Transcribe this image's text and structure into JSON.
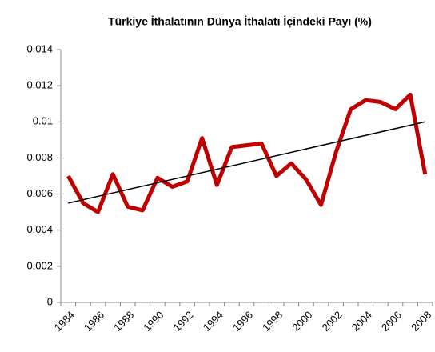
{
  "chart_data": {
    "type": "line",
    "title": "Türkiye İthalatının Dünya İthalatı  İçindeki Payı (%)",
    "categories": [
      "1984",
      null,
      "1986",
      null,
      "1988",
      null,
      "1990",
      null,
      "1992",
      null,
      "1994",
      null,
      "1996",
      null,
      "1998",
      null,
      "2000",
      null,
      "2002",
      null,
      "2004",
      null,
      "2006",
      null,
      "2008"
    ],
    "series": [
      {
        "color": "#c00000",
        "values": [
          0.007,
          0.0055,
          0.005,
          0.0071,
          0.0053,
          0.0051,
          0.0069,
          0.0064,
          0.0067,
          0.0091,
          0.0065,
          0.0086,
          0.0087,
          0.0088,
          0.007,
          0.0077,
          0.0068,
          0.0054,
          0.0083,
          0.0107,
          0.0112,
          0.0111,
          0.0107,
          0.0115,
          0.0071
        ]
      }
    ],
    "trendline": {
      "color": "#000000",
      "values": [
        0.0055,
        0.01
      ]
    },
    "ylim": [
      0,
      0.014
    ],
    "yticks": [
      0,
      0.002,
      0.004,
      0.006,
      0.008,
      0.01,
      0.012,
      0.014
    ],
    "grid": false
  }
}
